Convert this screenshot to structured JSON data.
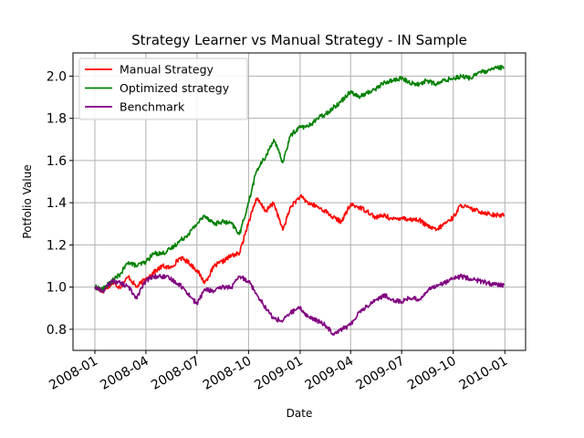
{
  "chart_data": {
    "type": "line",
    "title": "Strategy Learner vs Manual Strategy - IN Sample",
    "xlabel": "Date",
    "ylabel": "Potfolio Value",
    "grid": true,
    "legend_position": "top-left",
    "x_ticks": [
      "2008-01",
      "2008-04",
      "2008-07",
      "2008-10",
      "2009-01",
      "2009-04",
      "2009-07",
      "2009-10",
      "2010-01"
    ],
    "y_ticks": [
      "0.8",
      "1.0",
      "1.2",
      "1.4",
      "1.6",
      "1.8",
      "2.0"
    ],
    "xlim": [
      "2007-11-23",
      "2010-02-07"
    ],
    "ylim": [
      0.7,
      2.11
    ],
    "x": [
      "2008-01-01",
      "2008-01-15",
      "2008-02-01",
      "2008-02-15",
      "2008-03-01",
      "2008-03-15",
      "2008-04-01",
      "2008-04-15",
      "2008-05-01",
      "2008-05-15",
      "2008-06-01",
      "2008-06-15",
      "2008-07-01",
      "2008-07-15",
      "2008-08-01",
      "2008-08-15",
      "2008-09-01",
      "2008-09-15",
      "2008-10-01",
      "2008-10-15",
      "2008-11-01",
      "2008-11-15",
      "2008-12-01",
      "2008-12-15",
      "2009-01-01",
      "2009-01-15",
      "2009-02-01",
      "2009-02-15",
      "2009-03-01",
      "2009-03-15",
      "2009-04-01",
      "2009-04-15",
      "2009-05-01",
      "2009-05-15",
      "2009-06-01",
      "2009-06-15",
      "2009-07-01",
      "2009-07-15",
      "2009-08-01",
      "2009-08-15",
      "2009-09-01",
      "2009-09-15",
      "2009-10-01",
      "2009-10-15",
      "2009-11-01",
      "2009-11-15",
      "2009-12-01",
      "2009-12-15",
      "2009-12-31"
    ],
    "series": [
      {
        "name": "Manual Strategy",
        "color": "#ff0000",
        "values": [
          1.0,
          0.98,
          1.02,
          1.0,
          1.05,
          1.0,
          1.04,
          1.07,
          1.1,
          1.09,
          1.14,
          1.12,
          1.08,
          1.02,
          1.1,
          1.12,
          1.15,
          1.16,
          1.31,
          1.42,
          1.36,
          1.4,
          1.27,
          1.38,
          1.43,
          1.4,
          1.38,
          1.36,
          1.33,
          1.31,
          1.39,
          1.38,
          1.36,
          1.33,
          1.34,
          1.32,
          1.33,
          1.32,
          1.32,
          1.29,
          1.27,
          1.3,
          1.33,
          1.39,
          1.37,
          1.36,
          1.35,
          1.34,
          1.34
        ]
      },
      {
        "name": "Optimized strategy",
        "color": "#008000",
        "values": [
          1.0,
          0.99,
          1.03,
          1.06,
          1.12,
          1.1,
          1.12,
          1.16,
          1.16,
          1.18,
          1.22,
          1.25,
          1.3,
          1.34,
          1.3,
          1.31,
          1.3,
          1.25,
          1.4,
          1.55,
          1.62,
          1.7,
          1.59,
          1.72,
          1.76,
          1.76,
          1.8,
          1.82,
          1.85,
          1.88,
          1.93,
          1.9,
          1.92,
          1.94,
          1.97,
          1.98,
          1.99,
          1.97,
          1.96,
          1.98,
          1.96,
          1.98,
          1.99,
          2.0,
          1.99,
          2.02,
          2.02,
          2.04,
          2.04
        ]
      },
      {
        "name": "Benchmark",
        "color": "#800080",
        "values": [
          1.0,
          0.98,
          1.03,
          1.02,
          1.0,
          0.95,
          1.03,
          1.05,
          1.05,
          1.04,
          1.01,
          0.97,
          0.92,
          0.99,
          0.98,
          1.0,
          1.0,
          1.05,
          1.03,
          0.97,
          0.9,
          0.85,
          0.84,
          0.88,
          0.9,
          0.86,
          0.84,
          0.82,
          0.78,
          0.8,
          0.82,
          0.88,
          0.91,
          0.94,
          0.96,
          0.94,
          0.93,
          0.95,
          0.94,
          0.98,
          1.01,
          1.02,
          1.04,
          1.05,
          1.04,
          1.03,
          1.02,
          1.01,
          1.01
        ]
      }
    ]
  }
}
